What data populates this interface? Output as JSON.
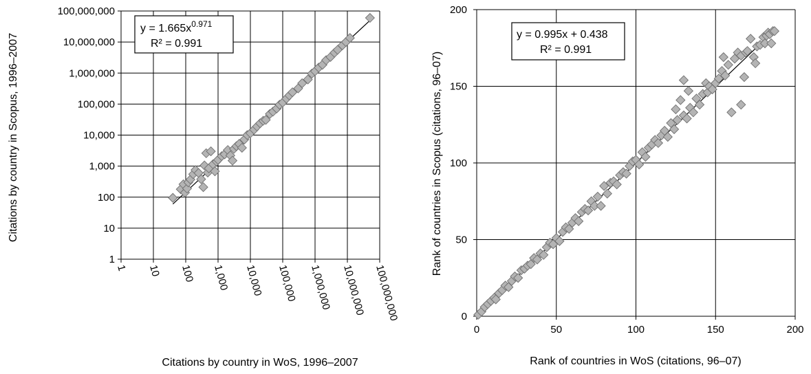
{
  "chart_data": [
    {
      "type": "scatter",
      "xscale": "log",
      "yscale": "log",
      "xlabel": "Citations by country in WoS, 1996–2007",
      "ylabel": "Citations by country in Scopus, 1996–2007",
      "xlim": [
        1,
        100000000
      ],
      "ylim": [
        1,
        100000000
      ],
      "grid": true,
      "x_ticks": [
        "1",
        "10",
        "100",
        "1,000",
        "10,000",
        "100,000",
        "1,000,000",
        "10,000,000",
        "100,000,000"
      ],
      "y_ticks": [
        "1",
        "10",
        "100",
        "1,000",
        "10,000",
        "100,000",
        "1,000,000",
        "10,000,000",
        "100,000,000"
      ],
      "trendline": {
        "type": "power",
        "a": 1.665,
        "b": 0.971
      },
      "annotation": {
        "line1_prefix": "y = 1.665x",
        "line1_exponent": "0.971",
        "line2": "R² = 0.991"
      },
      "points": [
        [
          40,
          95
        ],
        [
          70,
          180
        ],
        [
          85,
          260
        ],
        [
          95,
          140
        ],
        [
          110,
          190
        ],
        [
          120,
          300
        ],
        [
          140,
          370
        ],
        [
          170,
          550
        ],
        [
          200,
          750
        ],
        [
          250,
          600
        ],
        [
          300,
          380
        ],
        [
          350,
          210
        ],
        [
          380,
          1050
        ],
        [
          430,
          2600
        ],
        [
          480,
          620
        ],
        [
          520,
          850
        ],
        [
          600,
          3000
        ],
        [
          700,
          1150
        ],
        [
          800,
          680
        ],
        [
          900,
          1400
        ],
        [
          1000,
          1600
        ],
        [
          1300,
          2100
        ],
        [
          1600,
          2400
        ],
        [
          2000,
          3300
        ],
        [
          2400,
          2200
        ],
        [
          2800,
          1500
        ],
        [
          3100,
          3600
        ],
        [
          3700,
          4400
        ],
        [
          4500,
          5200
        ],
        [
          5500,
          3900
        ],
        [
          6500,
          7200
        ],
        [
          8000,
          10000
        ],
        [
          10000,
          11500
        ],
        [
          13000,
          15000
        ],
        [
          16000,
          19000
        ],
        [
          20000,
          24000
        ],
        [
          25000,
          29000
        ],
        [
          30000,
          31000
        ],
        [
          40000,
          48000
        ],
        [
          50000,
          57000
        ],
        [
          65000,
          72000
        ],
        [
          80000,
          95000
        ],
        [
          100000,
          112000
        ],
        [
          130000,
          150000
        ],
        [
          160000,
          190000
        ],
        [
          200000,
          240000
        ],
        [
          300000,
          320000
        ],
        [
          400000,
          470000
        ],
        [
          600000,
          620000
        ],
        [
          800000,
          960000
        ],
        [
          1000000,
          1150000
        ],
        [
          1300000,
          1500000
        ],
        [
          1700000,
          1850000
        ],
        [
          2200000,
          2600000
        ],
        [
          3000000,
          3300000
        ],
        [
          4000000,
          4500000
        ],
        [
          5000000,
          5600000
        ],
        [
          7000000,
          7800000
        ],
        [
          9000000,
          10000000
        ],
        [
          12000000,
          13500000
        ],
        [
          50000000,
          60000000
        ]
      ]
    },
    {
      "type": "scatter",
      "xlabel": "Rank of countries in WoS (citations, 96–07)",
      "ylabel": "Rank of countries in Scopus (citations, 96–07)",
      "xlim": [
        0,
        200
      ],
      "ylim": [
        0,
        200
      ],
      "grid": true,
      "x_ticks": [
        "0",
        "50",
        "100",
        "150",
        "200"
      ],
      "y_ticks": [
        "0",
        "50",
        "100",
        "150",
        "200"
      ],
      "trendline": {
        "type": "linear",
        "slope": 0.995,
        "intercept": 0.438
      },
      "annotation": {
        "line1": "y = 0.995x  + 0.438",
        "line2": "R² = 0.991"
      },
      "points": [
        [
          1,
          1
        ],
        [
          3,
          3
        ],
        [
          5,
          6
        ],
        [
          7,
          8
        ],
        [
          9,
          10
        ],
        [
          11,
          12
        ],
        [
          12,
          11
        ],
        [
          14,
          15
        ],
        [
          16,
          17
        ],
        [
          18,
          20
        ],
        [
          20,
          19
        ],
        [
          22,
          23
        ],
        [
          24,
          26
        ],
        [
          26,
          25
        ],
        [
          28,
          30
        ],
        [
          30,
          31
        ],
        [
          32,
          33
        ],
        [
          34,
          34
        ],
        [
          36,
          38
        ],
        [
          38,
          37
        ],
        [
          40,
          41
        ],
        [
          42,
          40
        ],
        [
          44,
          45
        ],
        [
          46,
          48
        ],
        [
          48,
          47
        ],
        [
          50,
          51
        ],
        [
          52,
          49
        ],
        [
          54,
          55
        ],
        [
          56,
          58
        ],
        [
          58,
          57
        ],
        [
          60,
          61
        ],
        [
          62,
          64
        ],
        [
          64,
          62
        ],
        [
          66,
          68
        ],
        [
          68,
          70
        ],
        [
          70,
          69
        ],
        [
          72,
          75
        ],
        [
          74,
          72
        ],
        [
          76,
          78
        ],
        [
          78,
          72
        ],
        [
          80,
          85
        ],
        [
          82,
          80
        ],
        [
          84,
          87
        ],
        [
          86,
          88
        ],
        [
          88,
          86
        ],
        [
          90,
          92
        ],
        [
          92,
          94
        ],
        [
          94,
          93
        ],
        [
          96,
          98
        ],
        [
          98,
          101
        ],
        [
          100,
          102
        ],
        [
          102,
          99
        ],
        [
          104,
          107
        ],
        [
          106,
          104
        ],
        [
          108,
          110
        ],
        [
          110,
          112
        ],
        [
          112,
          115
        ],
        [
          114,
          113
        ],
        [
          116,
          118
        ],
        [
          118,
          121
        ],
        [
          120,
          117
        ],
        [
          122,
          126
        ],
        [
          124,
          122
        ],
        [
          125,
          135
        ],
        [
          126,
          128
        ],
        [
          128,
          141
        ],
        [
          130,
          154
        ],
        [
          130,
          131
        ],
        [
          132,
          129
        ],
        [
          133,
          147
        ],
        [
          134,
          136
        ],
        [
          136,
          133
        ],
        [
          138,
          142
        ],
        [
          140,
          138
        ],
        [
          142,
          145
        ],
        [
          144,
          152
        ],
        [
          145,
          146
        ],
        [
          146,
          150
        ],
        [
          148,
          148
        ],
        [
          150,
          152
        ],
        [
          152,
          155
        ],
        [
          154,
          160
        ],
        [
          155,
          169
        ],
        [
          156,
          157
        ],
        [
          158,
          164
        ],
        [
          160,
          133
        ],
        [
          162,
          168
        ],
        [
          164,
          172
        ],
        [
          166,
          138
        ],
        [
          166,
          170
        ],
        [
          168,
          156
        ],
        [
          169,
          172
        ],
        [
          170,
          173
        ],
        [
          172,
          181
        ],
        [
          174,
          169
        ],
        [
          175,
          165
        ],
        [
          176,
          176
        ],
        [
          178,
          177
        ],
        [
          180,
          182
        ],
        [
          181,
          178
        ],
        [
          182,
          183
        ],
        [
          183,
          185
        ],
        [
          184,
          184
        ],
        [
          185,
          178
        ],
        [
          186,
          186
        ],
        [
          187,
          186
        ]
      ]
    }
  ]
}
